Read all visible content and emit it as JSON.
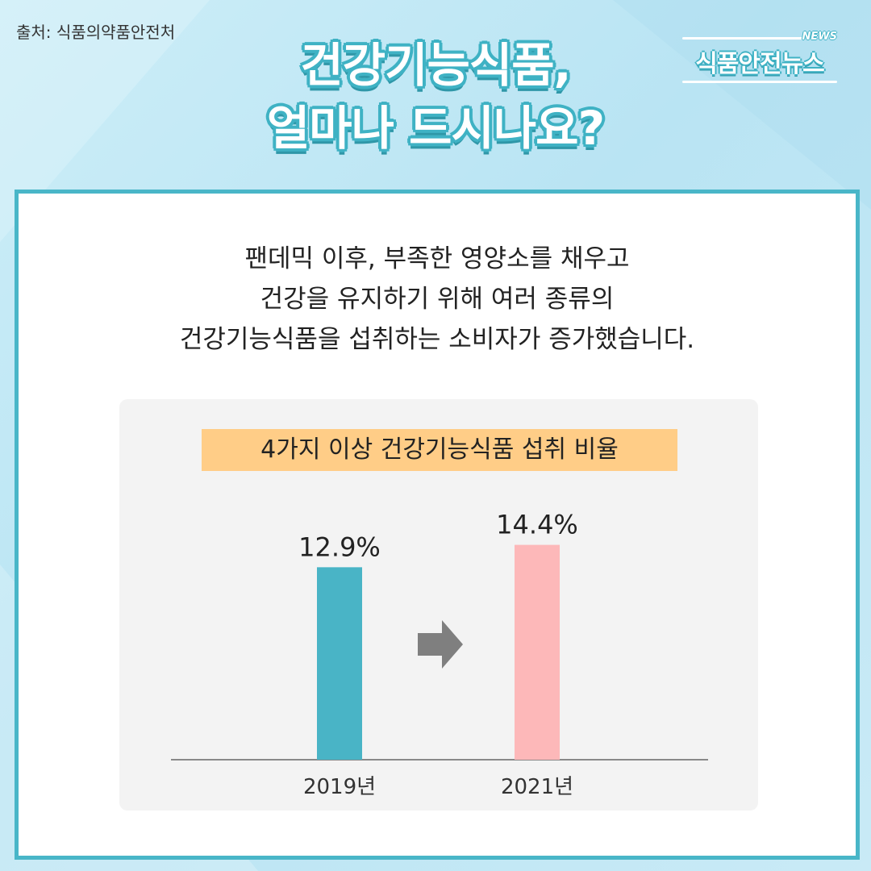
{
  "source": "출처: 식품의약품안전처",
  "title": {
    "line1": "건강기능식품,",
    "line2": "얼마나 드시나요?"
  },
  "logo": {
    "news": "NEWS",
    "text": "식품안전뉴스"
  },
  "intro": {
    "line1": "팬데믹 이후, 부족한 영양소를 채우고",
    "line2": "건강을 유지하기 위해 여러 종류의",
    "line3": "건강기능식품을 섭취하는 소비자가 증가했습니다."
  },
  "colors": {
    "accent": "#49b6c8",
    "bar_2019": "#49b4c6",
    "bar_2021": "#fdb8b9",
    "title_bg": "#ffcd87",
    "arrow": "#7f7f7f"
  },
  "chart_data": {
    "type": "bar",
    "title": "4가지 이상 건강기능식품 섭취 비율",
    "categories": [
      "2019년",
      "2021년"
    ],
    "values": [
      12.9,
      14.4
    ],
    "value_labels": [
      "12.9%",
      "14.4%"
    ],
    "unit": "%",
    "ylim": [
      0,
      16
    ],
    "grid": false,
    "legend": "none",
    "annotation": "arrow-right-between-bars"
  }
}
